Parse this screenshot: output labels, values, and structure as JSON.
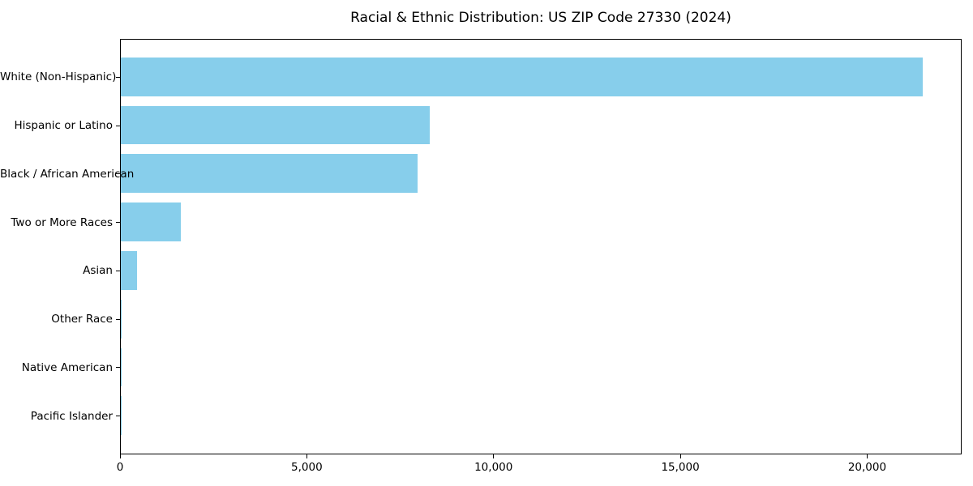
{
  "chart_data": {
    "type": "bar",
    "orientation": "horizontal",
    "title": "Racial & Ethnic Distribution: US ZIP Code 27330 (2024)",
    "categories": [
      "White (Non-Hispanic)",
      "Hispanic or Latino",
      "Black / African American",
      "Two or More Races",
      "Asian",
      "Other Race",
      "Native American",
      "Pacific Islander"
    ],
    "values": [
      21460,
      8280,
      7950,
      1600,
      430,
      25,
      10,
      5
    ],
    "xlabel": "",
    "ylabel": "",
    "xlim": [
      0,
      22530
    ],
    "xticks": [
      0,
      5000,
      10000,
      15000,
      20000
    ],
    "xtick_labels": [
      "0",
      "5,000",
      "10,000",
      "15,000",
      "20,000"
    ],
    "bar_color": "#87CEEB",
    "grid": false,
    "legend_position": "none"
  }
}
